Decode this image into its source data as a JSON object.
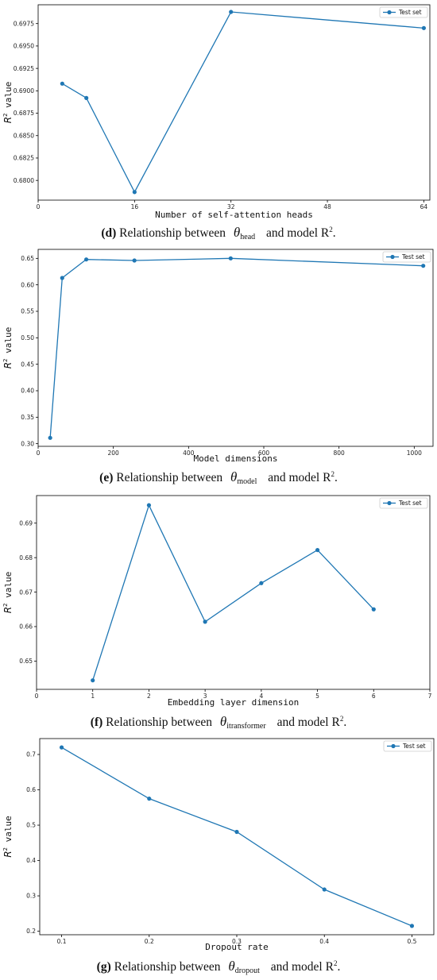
{
  "colors": {
    "series": "#1f77b4",
    "axis": "#000000",
    "legend_border": "#cccccc"
  },
  "chart_data": [
    {
      "type": "line",
      "x": [
        4,
        8,
        16,
        32,
        64
      ],
      "series": [
        {
          "name": "Test set",
          "values": [
            0.6908,
            0.6892,
            0.6787,
            0.6988,
            0.697
          ]
        }
      ],
      "xlabel": "Number of self-attention heads",
      "ylabel_prefix": "R",
      "ylabel_sup": "2",
      "ylabel_suffix": " value",
      "xlim": [
        0,
        65
      ],
      "ylim": [
        0.6778,
        0.6996
      ],
      "xticks": [
        0,
        16,
        32,
        48,
        64
      ],
      "yticks": [
        0.68,
        0.6825,
        0.685,
        0.6875,
        0.69,
        0.6925,
        0.695,
        0.6975
      ],
      "ytick_decimals": 4,
      "grid": false,
      "legend_position": "top-right",
      "caption": {
        "label": "(d)",
        "text_before": "Relationship between",
        "theta": "θ",
        "theta_sub": "head",
        "text_after": "and model R",
        "text_after_sup": "2",
        "end": "."
      }
    },
    {
      "type": "line",
      "x": [
        32,
        64,
        128,
        256,
        512,
        1024
      ],
      "series": [
        {
          "name": "Test set",
          "values": [
            0.311,
            0.613,
            0.648,
            0.646,
            0.65,
            0.636
          ]
        }
      ],
      "xlabel": "Model dimensions",
      "ylabel_prefix": "R",
      "ylabel_sup": "2",
      "ylabel_suffix": " value",
      "xlim": [
        0,
        1050
      ],
      "ylim": [
        0.295,
        0.667
      ],
      "xticks": [
        0,
        200,
        400,
        600,
        800,
        1000
      ],
      "yticks": [
        0.3,
        0.35,
        0.4,
        0.45,
        0.5,
        0.55,
        0.6,
        0.65
      ],
      "ytick_decimals": 2,
      "grid": false,
      "legend_position": "top-right",
      "caption": {
        "label": "(e)",
        "text_before": "Relationship between",
        "theta": "θ",
        "theta_sub": "model",
        "text_after": "and model R",
        "text_after_sup": "2",
        "end": "."
      }
    },
    {
      "type": "line",
      "x": [
        1,
        2,
        3,
        4,
        5,
        6
      ],
      "series": [
        {
          "name": "Test set",
          "values": [
            0.6444,
            0.6952,
            0.6614,
            0.6726,
            0.6822,
            0.665
          ]
        }
      ],
      "xlabel": "Embedding layer dimension",
      "ylabel_prefix": "R",
      "ylabel_sup": "2",
      "ylabel_suffix": " value",
      "xlim": [
        0,
        7
      ],
      "ylim": [
        0.6418,
        0.698
      ],
      "xticks": [
        0,
        1,
        2,
        3,
        4,
        5,
        6,
        7
      ],
      "yticks": [
        0.65,
        0.66,
        0.67,
        0.68,
        0.69
      ],
      "ytick_decimals": 2,
      "grid": false,
      "legend_position": "top-right",
      "caption": {
        "label": "(f)",
        "text_before": "Relationship between",
        "theta": "θ",
        "theta_sub": "itransformer",
        "text_after": "and model R",
        "text_after_sup": "2",
        "end": "."
      }
    },
    {
      "type": "line",
      "x": [
        0.1,
        0.2,
        0.3,
        0.4,
        0.5
      ],
      "series": [
        {
          "name": "Test set",
          "values": [
            0.72,
            0.575,
            0.481,
            0.318,
            0.215
          ]
        }
      ],
      "xlabel": "Dropout rate",
      "ylabel_prefix": "R",
      "ylabel_sup": "2",
      "ylabel_suffix": " value",
      "xlim": [
        0.075,
        0.525
      ],
      "ylim": [
        0.19,
        0.745
      ],
      "xticks": [
        0.1,
        0.2,
        0.3,
        0.4,
        0.5
      ],
      "xtick_decimals": 1,
      "yticks": [
        0.2,
        0.3,
        0.4,
        0.5,
        0.6,
        0.7
      ],
      "ytick_decimals": 1,
      "grid": false,
      "legend_position": "top-right",
      "caption": {
        "label": "(g)",
        "text_before": "Relationship between",
        "theta": "θ",
        "theta_sub": "dropout",
        "text_after": "and model R",
        "text_after_sup": "2",
        "end": "."
      }
    }
  ]
}
